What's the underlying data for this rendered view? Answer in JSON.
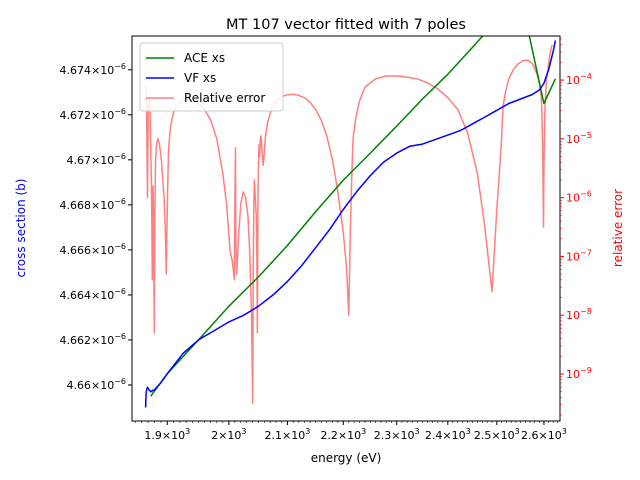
{
  "chart_data": {
    "type": "line",
    "title": "MT 107 vector fitted with 7 poles",
    "xlabel": "energy (eV)",
    "ylabel": "cross section (b)",
    "y2label": "relative error",
    "xscale": "log",
    "xlim": [
      1845,
      2635
    ],
    "xticks": [
      1900,
      2000,
      2100,
      2200,
      2300,
      2400,
      2500,
      2600
    ],
    "xtick_labels": [
      "1.9 × 10^3",
      "2 × 10^3",
      "2.1 × 10^3",
      "2.2 × 10^3",
      "2.3 × 10^3",
      "2.4 × 10^3",
      "2.5 × 10^3",
      "2.6 × 10^3"
    ],
    "ylim": [
      4.6584e-06,
      4.6755e-06
    ],
    "yticks": [
      4.66e-06,
      4.662e-06,
      4.664e-06,
      4.666e-06,
      4.668e-06,
      4.67e-06,
      4.672e-06,
      4.674e-06
    ],
    "ytick_labels": [
      "4.66 × 10^-6",
      "4.662 × 10^-6",
      "4.664 × 10^-6",
      "4.666 × 10^-6",
      "4.668 × 10^-6",
      "4.67 × 10^-6",
      "4.672 × 10^-6",
      "4.674 × 10^-6"
    ],
    "y2scale": "log",
    "y2lim_log10": [
      -9.8,
      -3.25
    ],
    "y2ticks_log10": [
      -9,
      -8,
      -7,
      -6,
      -5,
      -4
    ],
    "y2tick_labels": [
      "10^-9",
      "10^-8",
      "10^-7",
      "10^-6",
      "10^-5",
      "10^-4"
    ],
    "legend": {
      "location": "upper left",
      "entries": [
        "ACE xs",
        "VF xs",
        "Relative error"
      ]
    },
    "series": [
      {
        "name": "ACE xs",
        "color": "#008000",
        "axis": "left",
        "x": [
          1874,
          1900,
          1950,
          2000,
          2050,
          2100,
          2150,
          2200,
          2250,
          2300,
          2350,
          2400,
          2450,
          2500,
          2550,
          2600,
          2625
        ],
        "y": [
          4.6595e-06,
          4.6605e-06,
          4.662e-06,
          4.6635e-06,
          4.6648e-06,
          4.6662e-06,
          4.6677e-06,
          4.6691e-06,
          4.6703e-06,
          4.6715e-06,
          4.6727e-06,
          4.6738e-06,
          4.675e-06,
          4.6762e-06,
          4.6773e-06,
          4.6725e-06,
          4.6736e-06
        ]
      },
      {
        "name": "VF xs",
        "color": "#0000ff",
        "axis": "left",
        "x": [
          1866,
          1866.5,
          1867,
          1869,
          1871,
          1874,
          1880,
          1890,
          1900,
          1925,
          1950,
          1975,
          2000,
          2025,
          2050,
          2075,
          2100,
          2125,
          2150,
          2175,
          2200,
          2225,
          2250,
          2275,
          2300,
          2325,
          2350,
          2375,
          2400,
          2425,
          2450,
          2475,
          2500,
          2525,
          2550,
          2575,
          2590,
          2600,
          2610,
          2620,
          2625
        ],
        "y": [
          4.659e-06,
          4.6594e-06,
          4.6597e-06,
          4.6599e-06,
          4.6598e-06,
          4.6597e-06,
          4.6598e-06,
          4.6601e-06,
          4.6605e-06,
          4.6614e-06,
          4.662e-06,
          4.6624e-06,
          4.6628e-06,
          4.6631e-06,
          4.6635e-06,
          4.664e-06,
          4.6646e-06,
          4.6653e-06,
          4.6661e-06,
          4.6669e-06,
          4.6678e-06,
          4.6686e-06,
          4.6693e-06,
          4.6699e-06,
          4.6703e-06,
          4.6706e-06,
          4.6707e-06,
          4.6709e-06,
          4.6711e-06,
          4.6713e-06,
          4.6716e-06,
          4.6719e-06,
          4.6722e-06,
          4.6725e-06,
          4.6727e-06,
          4.6729e-06,
          4.6731e-06,
          4.6734e-06,
          4.674e-06,
          4.6748e-06,
          4.6753e-06
        ]
      },
      {
        "name": "Relative error",
        "color": "#ff0000",
        "opacity": 0.5,
        "axis": "right",
        "x": [
          1866,
          1866.6,
          1867.2,
          1868,
          1869,
          1870,
          1871,
          1872,
          1872.8,
          1873.5,
          1874.2,
          1875,
          1875.8,
          1876.5,
          1877,
          1877.5,
          1878.1,
          1878.8,
          1879.6,
          1880.5,
          1881.5,
          1883,
          1885,
          1887,
          1889,
          1891,
          1893,
          1895,
          1897,
          1898.5,
          1899.5,
          1900.5,
          1902,
          1905,
          1910,
          1915,
          1920,
          1930,
          1940,
          1950,
          1960,
          1970,
          1980,
          1990,
          1996,
          2002,
          2006,
          2009,
          2010.5,
          2011,
          2011.5,
          2013,
          2016,
          2020,
          2024,
          2028,
          2032,
          2035,
          2038,
          2040,
          2041,
          2041.5,
          2042,
          2043,
          2045,
          2046,
          2047,
          2048,
          2049,
          2050,
          2051,
          2052,
          2053,
          2054,
          2055,
          2056,
          2057,
          2058,
          2059,
          2060,
          2062,
          2066,
          2072,
          2080,
          2090,
          2100,
          2110,
          2120,
          2130,
          2140,
          2150,
          2160,
          2170,
          2180,
          2190,
          2200,
          2206,
          2210,
          2213,
          2215,
          2217,
          2218,
          2219,
          2220,
          2221,
          2222,
          2225,
          2230,
          2240,
          2260,
          2280,
          2300,
          2320,
          2340,
          2360,
          2380,
          2400,
          2420,
          2440,
          2460,
          2475,
          2490,
          2500,
          2506,
          2509,
          2510.5,
          2511,
          2511.5,
          2513,
          2518,
          2525,
          2535,
          2545,
          2555,
          2565,
          2575,
          2580,
          2585,
          2590,
          2593,
          2595,
          2596,
          2597,
          2598,
          2599,
          2600,
          2601,
          2602,
          2604,
          2606,
          2609,
          2612,
          2615,
          2618,
          2622,
          2625
        ],
        "log10": [
          -4.1,
          -4.3,
          -4.4,
          -5.0,
          -6.0,
          -4.5,
          -4.3,
          -4.35,
          -4.5,
          -4.8,
          -5.3,
          -5.7,
          -6.5,
          -7.4,
          -6.5,
          -5.8,
          -6.2,
          -7.1,
          -8.3,
          -6.3,
          -5.4,
          -5.1,
          -5.0,
          -5.05,
          -5.2,
          -5.4,
          -5.7,
          -6.0,
          -6.6,
          -7.3,
          -6.5,
          -5.9,
          -5.2,
          -4.8,
          -4.55,
          -4.45,
          -4.38,
          -4.33,
          -4.35,
          -4.4,
          -4.5,
          -4.68,
          -5.0,
          -5.6,
          -6.1,
          -6.9,
          -7.1,
          -7.4,
          -5.5,
          -5.15,
          -6.7,
          -7.3,
          -6.7,
          -6.1,
          -5.9,
          -6.0,
          -6.3,
          -6.9,
          -8.0,
          -9.5,
          -7.2,
          -6.8,
          -6.1,
          -5.7,
          -6.1,
          -6.3,
          -6.9,
          -8.3,
          -6.2,
          -5.4,
          -5.1,
          -5.3,
          -5.0,
          -4.95,
          -5.05,
          -5.2,
          -5.35,
          -5.45,
          -5.35,
          -5.2,
          -4.95,
          -4.7,
          -4.5,
          -4.35,
          -4.28,
          -4.25,
          -4.24,
          -4.26,
          -4.3,
          -4.38,
          -4.5,
          -4.68,
          -4.95,
          -5.35,
          -5.9,
          -6.6,
          -7.2,
          -8.0,
          -6.5,
          -5.8,
          -5.2,
          -5.0,
          -4.9,
          -4.85,
          -4.8,
          -4.7,
          -4.55,
          -4.35,
          -4.12,
          -3.98,
          -3.93,
          -3.93,
          -3.95,
          -3.98,
          -4.05,
          -4.15,
          -4.3,
          -4.5,
          -4.9,
          -5.6,
          -6.5,
          -7.6,
          -6.2,
          -5.5,
          -5.1,
          -4.9,
          -4.8,
          -4.7,
          -4.45,
          -4.2,
          -3.98,
          -3.82,
          -3.72,
          -3.67,
          -3.66,
          -3.72,
          -3.8,
          -3.9,
          -4.05,
          -4.2,
          -4.4,
          -4.7,
          -5.1,
          -5.7,
          -6.5,
          -5.5,
          -5.0,
          -4.5,
          -4.2,
          -3.95,
          -3.8,
          -3.62,
          -3.48,
          -3.4
        ]
      }
    ]
  }
}
